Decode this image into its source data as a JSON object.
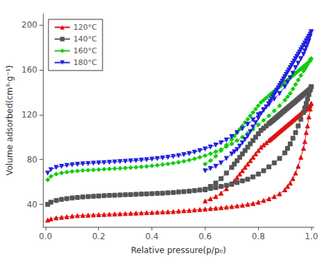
{
  "chart_data": {
    "type": "line",
    "x_label": "Relative pressure(p/p₀)",
    "y_label": "Volume adsorbed(cm³·g⁻¹)",
    "xlim": [
      -0.01,
      1.01
    ],
    "ylim": [
      20,
      210
    ],
    "xticks": [
      {
        "value": 0.0,
        "label": "0.0"
      },
      0.2,
      0.4,
      0.6,
      0.8,
      {
        "value": 1.0,
        "label": "1.0"
      }
    ],
    "yticks": [
      40,
      80,
      120,
      160,
      200
    ],
    "grid": false,
    "legend": "upper left",
    "series": [
      {
        "name": "120°C",
        "color": "#e01010",
        "marker": "triangle_up",
        "x": [
          0.008,
          0.02,
          0.04,
          0.06,
          0.08,
          0.1,
          0.12,
          0.14,
          0.16,
          0.18,
          0.2,
          0.22,
          0.24,
          0.26,
          0.28,
          0.3,
          0.32,
          0.34,
          0.36,
          0.38,
          0.4,
          0.42,
          0.44,
          0.46,
          0.48,
          0.5,
          0.52,
          0.54,
          0.56,
          0.58,
          0.6,
          0.62,
          0.64,
          0.66,
          0.68,
          0.7,
          0.72,
          0.74,
          0.76,
          0.78,
          0.8,
          0.82,
          0.84,
          0.86,
          0.88,
          0.9,
          0.91,
          0.92,
          0.93,
          0.94,
          0.95,
          0.96,
          0.97,
          0.975,
          0.98,
          0.985,
          0.99,
          0.995,
          0.999
        ],
        "values": [
          26,
          27,
          28,
          28.5,
          29,
          29.5,
          30,
          30.2,
          30.4,
          30.6,
          30.8,
          31,
          31.2,
          31.4,
          31.6,
          31.8,
          32,
          32.2,
          32.4,
          32.6,
          32.8,
          33,
          33.2,
          33.4,
          33.6,
          34,
          34.3,
          34.6,
          35,
          35.4,
          35.8,
          36.2,
          36.6,
          37,
          37.5,
          38,
          38.6,
          39.2,
          40,
          40.8,
          42,
          43.5,
          45,
          47,
          49.5,
          53,
          56,
          59,
          63,
          68,
          74,
          82,
          90,
          96,
          104,
          110,
          118,
          125,
          130
        ]
      },
      {
        "name": "120°C",
        "color": "#e01010",
        "marker": "triangle_up",
        "x": [
          0.999,
          0.995,
          0.99,
          0.985,
          0.98,
          0.975,
          0.97,
          0.965,
          0.96,
          0.955,
          0.95,
          0.945,
          0.94,
          0.935,
          0.93,
          0.925,
          0.92,
          0.915,
          0.91,
          0.905,
          0.9,
          0.895,
          0.89,
          0.885,
          0.88,
          0.875,
          0.87,
          0.865,
          0.86,
          0.855,
          0.85,
          0.845,
          0.84,
          0.83,
          0.82,
          0.81,
          0.8,
          0.79,
          0.78,
          0.77,
          0.76,
          0.75,
          0.74,
          0.73,
          0.72,
          0.71,
          0.7,
          0.68,
          0.66,
          0.64,
          0.62,
          0.6
        ],
        "values": [
          130,
          128,
          127,
          126,
          125,
          124,
          123,
          122,
          121,
          120,
          119,
          118,
          117,
          116,
          115,
          114,
          113,
          112,
          111,
          110,
          109,
          108,
          107,
          106,
          105,
          104,
          103,
          102,
          101,
          100,
          99,
          98,
          97,
          95,
          93,
          91,
          88,
          85,
          82,
          79,
          76,
          73,
          70,
          67,
          64,
          61,
          58,
          54,
          50,
          47,
          45,
          43
        ]
      },
      {
        "name": "140°C",
        "color": "#555555",
        "marker": "square",
        "x": [
          0.008,
          0.02,
          0.04,
          0.06,
          0.08,
          0.1,
          0.12,
          0.14,
          0.16,
          0.18,
          0.2,
          0.22,
          0.24,
          0.26,
          0.28,
          0.3,
          0.32,
          0.34,
          0.36,
          0.38,
          0.4,
          0.42,
          0.44,
          0.46,
          0.48,
          0.5,
          0.52,
          0.54,
          0.56,
          0.58,
          0.6,
          0.62,
          0.64,
          0.66,
          0.68,
          0.7,
          0.72,
          0.74,
          0.76,
          0.78,
          0.8,
          0.82,
          0.84,
          0.86,
          0.88,
          0.9,
          0.91,
          0.92,
          0.93,
          0.94,
          0.95,
          0.96,
          0.97,
          0.975,
          0.98,
          0.985,
          0.99,
          0.995,
          0.999
        ],
        "values": [
          40,
          42,
          43.5,
          44.5,
          45.2,
          45.8,
          46.2,
          46.6,
          47,
          47.2,
          47.5,
          47.8,
          48,
          48.2,
          48.4,
          48.6,
          48.8,
          49,
          49.2,
          49.4,
          49.6,
          49.8,
          50,
          50.3,
          50.6,
          51,
          51.4,
          51.8,
          52.3,
          52.8,
          53.5,
          54.2,
          55,
          56,
          57,
          58.2,
          59.5,
          61,
          62.5,
          64.5,
          67,
          70,
          73.5,
          77,
          81,
          86,
          90,
          94,
          99,
          104,
          110,
          116,
          122,
          126,
          130,
          134,
          138,
          142,
          145
        ]
      },
      {
        "name": "140°C",
        "color": "#555555",
        "marker": "square",
        "x": [
          0.999,
          0.995,
          0.99,
          0.985,
          0.98,
          0.975,
          0.97,
          0.965,
          0.96,
          0.955,
          0.95,
          0.945,
          0.94,
          0.935,
          0.93,
          0.925,
          0.92,
          0.915,
          0.91,
          0.905,
          0.9,
          0.895,
          0.89,
          0.885,
          0.88,
          0.875,
          0.87,
          0.865,
          0.86,
          0.855,
          0.85,
          0.845,
          0.84,
          0.83,
          0.82,
          0.81,
          0.8,
          0.79,
          0.78,
          0.77,
          0.76,
          0.75,
          0.74,
          0.73,
          0.72,
          0.71,
          0.7,
          0.68,
          0.66,
          0.64,
          0.62,
          0.6
        ],
        "values": [
          145,
          143,
          142,
          141,
          140,
          139,
          138,
          137,
          136,
          135,
          134,
          133,
          132,
          131,
          130,
          129,
          128,
          127,
          126,
          125,
          124,
          123,
          122,
          121,
          120,
          119,
          118,
          117,
          116,
          115,
          114,
          113,
          112,
          110,
          108,
          106,
          103,
          100,
          97,
          94,
          91,
          88,
          85,
          82,
          79,
          76,
          73,
          68,
          63,
          59,
          56,
          53
        ]
      },
      {
        "name": "160°C",
        "color": "#11cc11",
        "marker": "diamond",
        "x": [
          0.008,
          0.02,
          0.04,
          0.06,
          0.08,
          0.1,
          0.12,
          0.14,
          0.16,
          0.18,
          0.2,
          0.22,
          0.24,
          0.26,
          0.28,
          0.3,
          0.32,
          0.34,
          0.36,
          0.38,
          0.4,
          0.42,
          0.44,
          0.46,
          0.48,
          0.5,
          0.52,
          0.54,
          0.56,
          0.58,
          0.6,
          0.62,
          0.64,
          0.66,
          0.68,
          0.7,
          0.72,
          0.74,
          0.76,
          0.78,
          0.8,
          0.82,
          0.84,
          0.86,
          0.88,
          0.9,
          0.91,
          0.92,
          0.93,
          0.94,
          0.95,
          0.96,
          0.97,
          0.975,
          0.98,
          0.985,
          0.99,
          0.995,
          0.999
        ],
        "values": [
          62,
          65,
          67,
          68,
          68.8,
          69.4,
          69.8,
          70.2,
          70.5,
          70.8,
          71,
          71.3,
          71.6,
          71.9,
          72.2,
          72.5,
          72.8,
          73.1,
          73.5,
          73.9,
          74.4,
          74.9,
          75.5,
          76.1,
          76.8,
          77.6,
          78.5,
          79.5,
          80.7,
          82,
          83.5,
          85.2,
          87,
          89,
          91.5,
          94,
          97,
          100,
          103.5,
          107,
          111,
          115,
          119,
          123.5,
          128,
          133,
          136,
          139,
          143,
          147,
          151,
          155,
          159,
          161,
          163,
          165,
          167,
          169,
          170
        ]
      },
      {
        "name": "160°C",
        "color": "#11cc11",
        "marker": "diamond",
        "x": [
          0.999,
          0.995,
          0.99,
          0.985,
          0.98,
          0.975,
          0.97,
          0.965,
          0.96,
          0.955,
          0.95,
          0.945,
          0.94,
          0.935,
          0.93,
          0.925,
          0.92,
          0.915,
          0.91,
          0.905,
          0.9,
          0.895,
          0.89,
          0.885,
          0.88,
          0.875,
          0.87,
          0.865,
          0.86,
          0.855,
          0.85,
          0.845,
          0.84,
          0.83,
          0.82,
          0.81,
          0.8,
          0.79,
          0.78,
          0.77,
          0.76,
          0.75,
          0.74,
          0.73,
          0.72,
          0.71,
          0.7,
          0.68,
          0.66,
          0.64,
          0.62,
          0.6
        ],
        "values": [
          170,
          168,
          167,
          166,
          165,
          164,
          163,
          162,
          161,
          160,
          159,
          158,
          157,
          156,
          155,
          154,
          153,
          152,
          151,
          150,
          149,
          148,
          147,
          146,
          145,
          144,
          143,
          142,
          141,
          140,
          139,
          138,
          137,
          135,
          133,
          131,
          128,
          125,
          122,
          119,
          116,
          113,
          110,
          107,
          104,
          101,
          98,
          93,
          88,
          83,
          79,
          76
        ]
      },
      {
        "name": "180°C",
        "color": "#2222dd",
        "marker": "triangle_down",
        "x": [
          0.008,
          0.02,
          0.04,
          0.06,
          0.08,
          0.1,
          0.12,
          0.14,
          0.16,
          0.18,
          0.2,
          0.22,
          0.24,
          0.26,
          0.28,
          0.3,
          0.32,
          0.34,
          0.36,
          0.38,
          0.4,
          0.42,
          0.44,
          0.46,
          0.48,
          0.5,
          0.52,
          0.54,
          0.56,
          0.58,
          0.6,
          0.62,
          0.64,
          0.66,
          0.68,
          0.7,
          0.72,
          0.74,
          0.76,
          0.78,
          0.8,
          0.82,
          0.84,
          0.86,
          0.88,
          0.9,
          0.91,
          0.92,
          0.93,
          0.94,
          0.95,
          0.96,
          0.97,
          0.975,
          0.98,
          0.985,
          0.99,
          0.995,
          0.999
        ],
        "values": [
          68,
          71,
          73,
          74,
          74.8,
          75.4,
          75.8,
          76.2,
          76.5,
          76.8,
          77,
          77.3,
          77.6,
          77.9,
          78.2,
          78.5,
          78.8,
          79.1,
          79.5,
          79.9,
          80.4,
          80.9,
          81.5,
          82.1,
          82.8,
          83.5,
          84.4,
          85.4,
          86.6,
          88,
          89.5,
          91.2,
          93,
          95,
          97.5,
          100.5,
          104,
          107.5,
          111.5,
          115.5,
          120,
          124.5,
          129,
          134,
          139,
          145,
          149,
          153,
          157,
          162,
          166,
          170,
          174,
          177,
          180,
          183,
          186,
          190,
          194
        ]
      },
      {
        "name": "180°C",
        "color": "#2222dd",
        "marker": "triangle_down",
        "x": [
          0.999,
          0.995,
          0.99,
          0.985,
          0.98,
          0.975,
          0.97,
          0.965,
          0.96,
          0.955,
          0.95,
          0.945,
          0.94,
          0.935,
          0.93,
          0.925,
          0.92,
          0.915,
          0.91,
          0.905,
          0.9,
          0.895,
          0.89,
          0.885,
          0.88,
          0.875,
          0.87,
          0.865,
          0.86,
          0.855,
          0.85,
          0.845,
          0.84,
          0.83,
          0.82,
          0.81,
          0.8,
          0.79,
          0.78,
          0.77,
          0.76,
          0.75,
          0.74,
          0.73,
          0.72,
          0.71,
          0.7,
          0.68,
          0.66,
          0.64,
          0.62,
          0.6
        ],
        "values": [
          194,
          192,
          190,
          188,
          186,
          184,
          182,
          180,
          178,
          176,
          174,
          172,
          170,
          168,
          166,
          164,
          162,
          160,
          158,
          156,
          154,
          152,
          150,
          148,
          146,
          144,
          142,
          140,
          138,
          136,
          134,
          132,
          130,
          127,
          124,
          121,
          117,
          113,
          109,
          105,
          101,
          98,
          95,
          92,
          89,
          87,
          85,
          81,
          77,
          74,
          72,
          70
        ]
      }
    ]
  }
}
